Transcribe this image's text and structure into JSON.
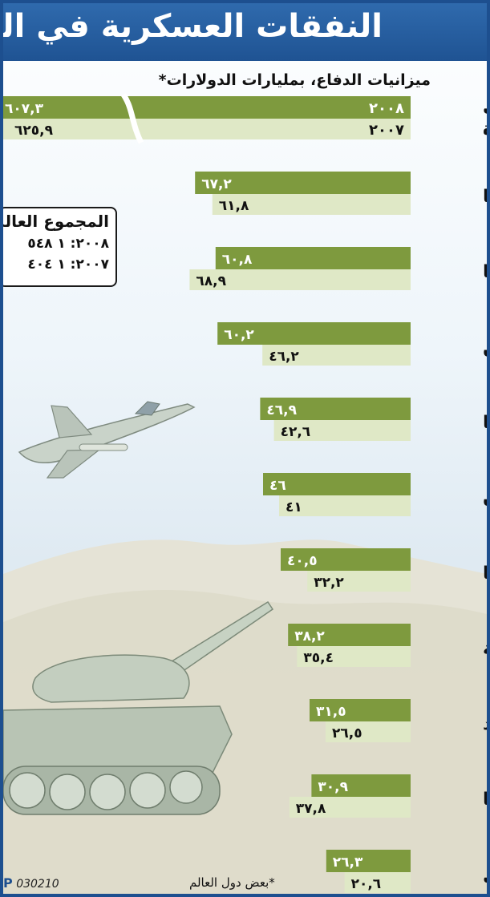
{
  "title": "النفقات العسكرية في العالم",
  "credit": "030210",
  "credit_brand": "P",
  "footnote": "*بعض دول العالم",
  "world_total": {
    "title": "المجموع العالمي",
    "line_2008": "٢٠٠٨: ١ ٥٤٨",
    "line_2007": "٢٠٠٧: ١ ٤٠٤"
  },
  "colors": {
    "bar_2008": "#7e9a3e",
    "bar_2007": "#dfe8c6",
    "header": "#1f5393"
  },
  "icons": [
    "fighter-jet-icon",
    "tank-icon",
    "desert-hills-icon"
  ],
  "chart_data": {
    "type": "bar",
    "orientation": "horizontal",
    "title": "النفقات العسكرية في العالم",
    "subtitle": "ميزانيات الدفاع، بمليارات الدولارات*",
    "series": [
      {
        "name": "٢٠٠٨",
        "values": [
          607.3,
          67.2,
          60.8,
          60.2,
          46.9,
          46,
          40.5,
          38.2,
          31.5,
          30.9,
          26.3
        ]
      },
      {
        "name": "٢٠٠٧",
        "values": [
          625.9,
          61.8,
          68.9,
          46.2,
          42.6,
          41,
          32.2,
          35.4,
          26.5,
          37.8,
          20.6
        ]
      }
    ],
    "categories": [
      "الولايات المتحدة",
      "فرنسا",
      "بريطانيا",
      "الصين",
      "المانيا",
      "اليابان",
      "روسيا",
      "السعودية",
      "الهند",
      "ايطاليا",
      "البرازيل"
    ],
    "value_labels_2008": [
      "٦٠٧,٣",
      "٦٧,٢",
      "٦٠,٨",
      "٦٠,٢",
      "٤٦,٩",
      "٤٦",
      "٤٠,٥",
      "٣٨,٢",
      "٣١,٥",
      "٣٠,٩",
      "٢٦,٣"
    ],
    "value_labels_2007": [
      "٦٢٥,٩",
      "٦١,٨",
      "٦٨,٩",
      "٤٦,٢",
      "٤٢,٦",
      "٤١",
      "٣٢,٢",
      "٣٥,٤",
      "٢٦,٥",
      "٣٧,٨",
      "٢٠,٦"
    ],
    "axis_break": "the United States bars are cut by a break mark; they are too long to draw at scale",
    "legend": "inside-bars",
    "grid": false
  }
}
